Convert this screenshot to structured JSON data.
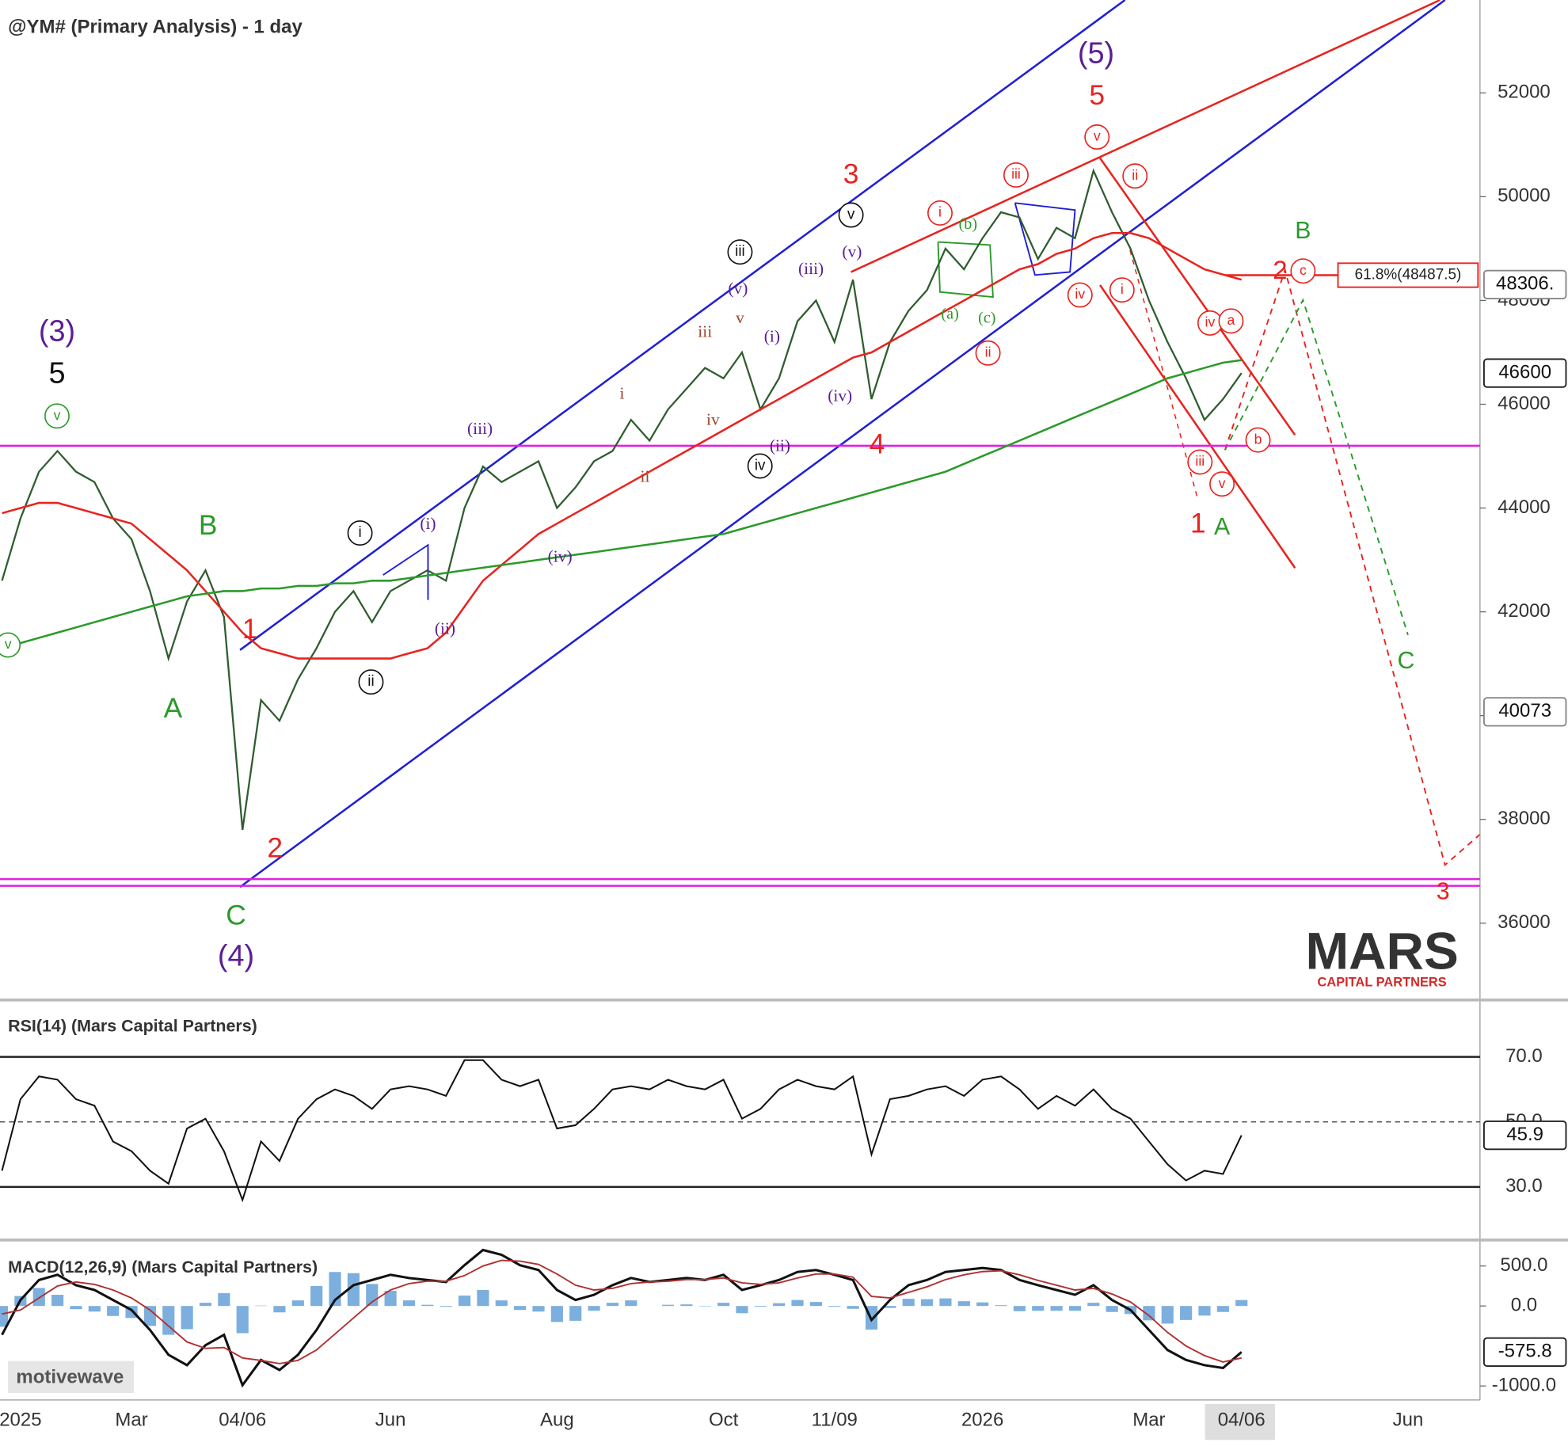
{
  "chart_data": [
    {
      "type": "line",
      "title": "@YM# (Primary Analysis) - 1 day",
      "categories": [
        null,
        "2025",
        null,
        null,
        null,
        null,
        null,
        "Mar",
        null,
        null,
        null,
        null,
        null,
        "04/06",
        null,
        null,
        null,
        null,
        null,
        null,
        null,
        "Jun",
        null,
        null,
        null,
        null,
        null,
        null,
        null,
        null,
        "Aug",
        null,
        null,
        null,
        null,
        null,
        null,
        null,
        null,
        "Oct",
        null,
        null,
        null,
        null,
        null,
        "11/09",
        null,
        null,
        null,
        null,
        null,
        null,
        null,
        "2026",
        null,
        null,
        null,
        null,
        null,
        null,
        null,
        null,
        "Mar",
        null,
        null,
        null,
        null,
        "04/06",
        null,
        null,
        null,
        null,
        null,
        null,
        null,
        null,
        "Jun",
        null,
        null,
        null
      ],
      "series": [
        {
          "color": "#2f5d2f",
          "values": [
            42600,
            43800,
            44700,
            45100,
            44700,
            44500,
            43800,
            43400,
            42400,
            41100,
            42200,
            42800,
            41900,
            37800,
            40300,
            39900,
            40700,
            41300,
            42000,
            42400,
            41800,
            42400,
            42600,
            42800,
            42600,
            44000,
            44800,
            44500,
            44700,
            44900,
            44000,
            44400,
            44900,
            45100,
            45700,
            45300,
            45900,
            46300,
            46700,
            46500,
            47000,
            45900,
            46500,
            47600,
            48000,
            47200,
            48400,
            46100,
            47200,
            47800,
            48200,
            49000,
            48600,
            49200,
            49700,
            49600,
            48800,
            49400,
            49200,
            50500,
            49700,
            49000,
            48000,
            47200,
            46500,
            45700,
            46100,
            46600,
            null,
            null,
            null,
            null,
            null,
            null,
            null,
            null,
            null,
            null,
            null,
            null
          ]
        },
        {
          "color": "#e8231e",
          "values": [
            43900,
            44000,
            44100,
            44100,
            44000,
            43900,
            43800,
            43700,
            43400,
            43100,
            42800,
            42400,
            42000,
            41600,
            41300,
            41200,
            41100,
            41100,
            41100,
            41100,
            41100,
            41100,
            41200,
            41300,
            41600,
            42100,
            42600,
            42900,
            43200,
            43500,
            43700,
            43900,
            44100,
            44300,
            44500,
            44700,
            44900,
            45100,
            45300,
            45500,
            45700,
            45900,
            46100,
            46300,
            46500,
            46700,
            46900,
            47000,
            47200,
            47400,
            47600,
            47800,
            48000,
            48200,
            48400,
            48600,
            48700,
            48900,
            49000,
            49200,
            49300,
            49300,
            49200,
            49000,
            48800,
            48600,
            48500,
            48400,
            null,
            null,
            null,
            null,
            null,
            null,
            null,
            null,
            null,
            null,
            null,
            null
          ]
        },
        {
          "color": "#2a9a2a",
          "values": [
            41300,
            41400,
            41500,
            41600,
            41700,
            41800,
            41900,
            42000,
            42100,
            42200,
            42300,
            42350,
            42400,
            42400,
            42450,
            42450,
            42500,
            42500,
            42550,
            42550,
            42600,
            42600,
            42650,
            42700,
            42750,
            42800,
            42850,
            42900,
            42950,
            43000,
            43050,
            43100,
            43150,
            43200,
            43250,
            43300,
            43350,
            43400,
            43450,
            43500,
            43600,
            43700,
            43800,
            43900,
            44000,
            44100,
            44200,
            44300,
            44400,
            44500,
            44600,
            44700,
            44850,
            45000,
            45150,
            45300,
            45450,
            45600,
            45750,
            45900,
            46050,
            46200,
            46350,
            46500,
            46600,
            46700,
            46800,
            46850,
            null,
            null,
            null,
            null,
            null,
            null,
            null,
            null,
            null,
            null,
            null,
            null
          ]
        }
      ],
      "ylim": [
        34520,
        53790
      ],
      "yticks": [
        36000,
        38000,
        40000,
        42000,
        44000,
        46000,
        48000,
        50000,
        52000
      ],
      "hlines": [
        {
          "value": 45200,
          "color": "#e020e0"
        },
        {
          "value": 36850,
          "color": "#e020e0"
        },
        {
          "value": 36720,
          "color": "#e020e0"
        }
      ],
      "fib": {
        "value": 48487.5,
        "label": "61.8%(48487.5)",
        "color": "#e8231e"
      },
      "price_flags": [
        {
          "value": 48306,
          "label": "48306."
        },
        {
          "value": 46600,
          "label": "46600"
        },
        {
          "value": 40073,
          "label": "40073"
        }
      ],
      "annotations": [
        {
          "text": "(3)",
          "color": "#5a1e96"
        },
        {
          "text": "5",
          "color": "#111111"
        },
        {
          "text": "v",
          "color": "#2a9a2a",
          "circled": true
        },
        {
          "text": "v",
          "color": "#2a9a2a",
          "circled": true
        },
        {
          "text": "A",
          "color": "#2a9a2a"
        },
        {
          "text": "B",
          "color": "#2a9a2a"
        },
        {
          "text": "C",
          "color": "#2a9a2a"
        },
        {
          "text": "(4)",
          "color": "#5a1e96"
        },
        {
          "text": "1",
          "color": "#e8231e"
        },
        {
          "text": "2",
          "color": "#e8231e"
        },
        {
          "text": "i",
          "color": "#111111",
          "circled": true
        },
        {
          "text": "ii",
          "color": "#111111",
          "circled": true
        },
        {
          "text": "iii",
          "color": "#111111",
          "circled": true
        },
        {
          "text": "iv",
          "color": "#111111",
          "circled": true
        },
        {
          "text": "v",
          "color": "#111111",
          "circled": true
        },
        {
          "text": "3",
          "color": "#e8231e"
        },
        {
          "text": "4",
          "color": "#e8231e"
        },
        {
          "text": "(5)",
          "color": "#5a1e96"
        },
        {
          "text": "5",
          "color": "#e8231e"
        },
        {
          "text": "1",
          "color": "#e8231e"
        },
        {
          "text": "A",
          "color": "#2a9a2a"
        },
        {
          "text": "B",
          "color": "#2a9a2a"
        },
        {
          "text": "2",
          "color": "#e8231e"
        },
        {
          "text": "C",
          "color": "#2a9a2a"
        },
        {
          "text": "3",
          "color": "#e8231e"
        },
        {
          "text": "(i)",
          "color": "#5a1e96",
          "serif": true
        },
        {
          "text": "(ii)",
          "color": "#5a1e96",
          "serif": true
        },
        {
          "text": "(iii)",
          "color": "#5a1e96",
          "serif": true
        },
        {
          "text": "(iv)",
          "color": "#5a1e96",
          "serif": true
        },
        {
          "text": "(v)",
          "color": "#5a1e96",
          "serif": true
        },
        {
          "text": "(i)",
          "color": "#5a1e96",
          "serif": true
        },
        {
          "text": "(ii)",
          "color": "#5a1e96",
          "serif": true
        },
        {
          "text": "(iii)",
          "color": "#5a1e96",
          "serif": true
        },
        {
          "text": "(iv)",
          "color": "#5a1e96",
          "serif": true
        },
        {
          "text": "(v)",
          "color": "#5a1e96",
          "serif": true
        },
        {
          "text": "i",
          "color": "#a0422a",
          "serif": true
        },
        {
          "text": "ii",
          "color": "#a0422a",
          "serif": true
        },
        {
          "text": "iii",
          "color": "#a0422a",
          "serif": true
        },
        {
          "text": "iv",
          "color": "#a0422a",
          "serif": true
        },
        {
          "text": "v",
          "color": "#a0422a",
          "serif": true
        },
        {
          "text": "i",
          "color": "#e8231e",
          "circled": true
        },
        {
          "text": "ii",
          "color": "#e8231e",
          "circled": true
        },
        {
          "text": "iii",
          "color": "#e8231e",
          "circled": true
        },
        {
          "text": "iv",
          "color": "#e8231e",
          "circled": true
        },
        {
          "text": "v",
          "color": "#e8231e",
          "circled": true
        },
        {
          "text": "ii",
          "color": "#e8231e",
          "circled": true
        },
        {
          "text": "i",
          "color": "#e8231e",
          "circled": true
        },
        {
          "text": "iv",
          "color": "#e8231e",
          "circled": true
        },
        {
          "text": "a",
          "color": "#e8231e",
          "circled": true
        },
        {
          "text": "iii",
          "color": "#e8231e",
          "circled": true
        },
        {
          "text": "v",
          "color": "#e8231e",
          "circled": true
        },
        {
          "text": "b",
          "color": "#e8231e",
          "circled": true
        },
        {
          "text": "c",
          "color": "#e8231e",
          "circled": true
        },
        {
          "text": "(a)",
          "color": "#2a9a2a",
          "serif": true
        },
        {
          "text": "(b)",
          "color": "#2a9a2a",
          "serif": true
        },
        {
          "text": "(c)",
          "color": "#2a9a2a",
          "serif": true
        }
      ]
    },
    {
      "type": "line",
      "title": "RSI(14) (Mars Capital Partners)",
      "color": "#111111",
      "values": [
        35,
        57,
        64,
        63,
        57,
        55,
        44,
        41,
        35,
        31,
        48,
        51,
        41,
        26,
        44,
        38,
        51,
        57,
        60,
        58,
        54,
        60,
        61,
        60,
        58,
        69,
        69,
        63,
        61,
        63,
        48,
        49,
        54,
        60,
        61,
        60,
        63,
        61,
        60,
        63,
        51,
        54,
        60,
        63,
        61,
        60,
        64,
        40,
        57,
        58,
        60,
        61,
        58,
        63,
        64,
        60,
        54,
        58,
        55,
        60,
        54,
        51,
        44,
        37,
        32,
        35,
        34,
        45.9,
        null,
        null,
        null,
        null,
        null,
        null,
        null,
        null,
        null,
        null,
        null,
        null
      ],
      "ylim": [
        13.7,
        87.5
      ],
      "yticks": [
        {
          "value": 70,
          "label": "70.0"
        },
        {
          "value": 50,
          "label": "50.0"
        },
        {
          "value": 30,
          "label": "30.0"
        }
      ],
      "flag": {
        "value": 45.9,
        "label": "45.9"
      }
    },
    {
      "type": "macd",
      "title": "MACD(12,26,9) (Mars Capital Partners)",
      "series": [
        {
          "color": "#111111",
          "values": [
            -360,
            75,
            325,
            390,
            260,
            200,
            75,
            -50,
            -300,
            -610,
            -740,
            -490,
            -360,
            -990,
            -675,
            -800,
            -610,
            -300,
            75,
            260,
            325,
            390,
            350,
            325,
            300,
            510,
            700,
            640,
            510,
            450,
            200,
            75,
            140,
            260,
            350,
            300,
            325,
            350,
            325,
            390,
            200,
            260,
            325,
            425,
            450,
            390,
            325,
            -175,
            75,
            260,
            325,
            425,
            450,
            475,
            450,
            325,
            260,
            200,
            140,
            260,
            75,
            -50,
            -300,
            -550,
            -675,
            -740,
            -775,
            -575.8,
            null,
            null,
            null,
            null,
            null,
            null,
            null,
            null,
            null,
            null,
            null,
            null
          ]
        },
        {
          "color": "#b03030",
          "values": [
            -100,
            -50,
            100,
            250,
            300,
            270,
            200,
            100,
            -50,
            -250,
            -450,
            -530,
            -520,
            -650,
            -680,
            -720,
            -680,
            -550,
            -350,
            -150,
            50,
            200,
            280,
            310,
            310,
            380,
            500,
            570,
            560,
            520,
            400,
            260,
            200,
            220,
            280,
            300,
            310,
            330,
            330,
            350,
            290,
            270,
            290,
            350,
            400,
            400,
            360,
            120,
            100,
            170,
            240,
            330,
            390,
            430,
            440,
            390,
            320,
            260,
            200,
            220,
            150,
            50,
            -120,
            -330,
            -500,
            -620,
            -700,
            -650,
            null,
            null,
            null,
            null,
            null,
            null,
            null,
            null,
            null,
            null,
            null,
            null
          ]
        }
      ],
      "histogram": {
        "color": "#5b9bd5",
        "values": [
          -260,
          125,
          225,
          140,
          -40,
          -70,
          -125,
          -150,
          -250,
          -360,
          -290,
          40,
          160,
          -340,
          5,
          -80,
          70,
          250,
          425,
          410,
          275,
          190,
          70,
          15,
          -10,
          130,
          200,
          70,
          -50,
          -70,
          -200,
          -185,
          -60,
          40,
          70,
          0,
          15,
          20,
          -5,
          40,
          -90,
          -10,
          35,
          75,
          50,
          -10,
          -35,
          -295,
          -25,
          90,
          85,
          95,
          60,
          45,
          10,
          -65,
          -60,
          -60,
          -60,
          40,
          -75,
          -100,
          -180,
          -220,
          -175,
          -120,
          -75,
          74.2,
          null,
          null,
          null,
          null,
          null,
          null,
          null,
          null,
          null,
          null,
          null,
          null
        ]
      },
      "ylim": [
        -1175,
        825
      ],
      "yticks": [
        {
          "value": 500,
          "label": "500.0"
        },
        {
          "value": 0,
          "label": "0.0"
        },
        {
          "value": -1000,
          "label": "-1000.0"
        }
      ],
      "flag": {
        "value": -575.8,
        "label": "-575.8"
      }
    }
  ],
  "branding": {
    "logo": "MARS",
    "tagline": "CAPITAL PARTNERS",
    "platform": "motivewave"
  }
}
